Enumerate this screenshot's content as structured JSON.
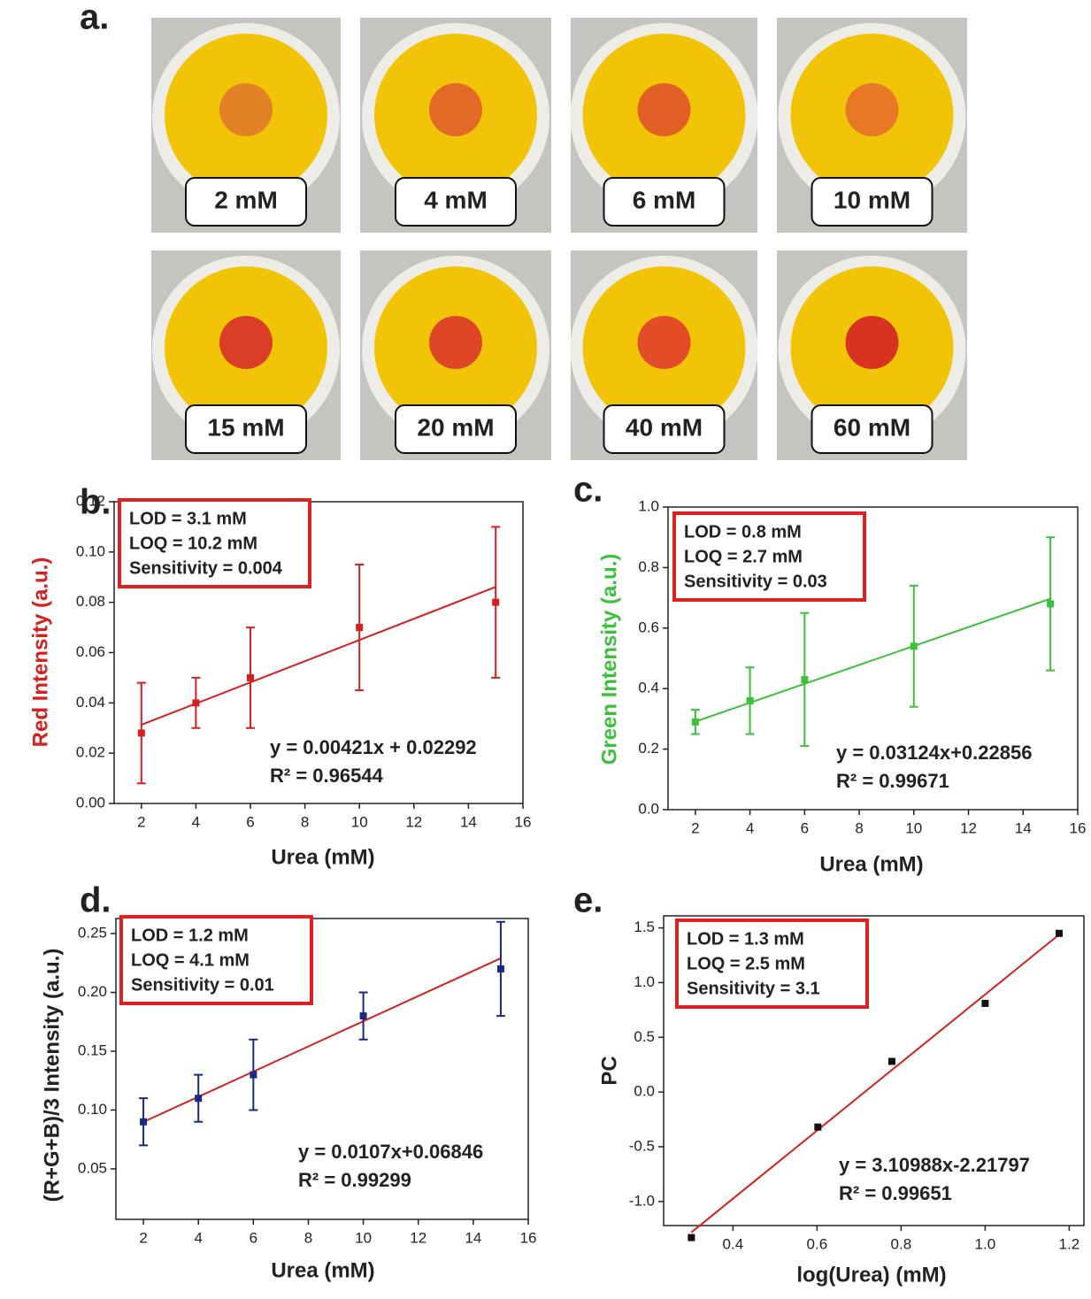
{
  "panel_a": {
    "letter": "a.",
    "tiles": [
      {
        "label": "2 mM",
        "spot_color": "#e07a2a"
      },
      {
        "label": "4 mM",
        "spot_color": "#e0602a"
      },
      {
        "label": "6 mM",
        "spot_color": "#e0552a"
      },
      {
        "label": "10 mM",
        "spot_color": "#e8702a"
      },
      {
        "label": "15 mM",
        "spot_color": "#d8302a"
      },
      {
        "label": "20 mM",
        "spot_color": "#dc3a2a"
      },
      {
        "label": "40 mM",
        "spot_color": "#e0402c"
      },
      {
        "label": "60 mM",
        "spot_color": "#d42424"
      }
    ]
  },
  "chart_data": [
    {
      "type": "scatter",
      "letter": "b.",
      "x": [
        2,
        4,
        6,
        10,
        15
      ],
      "values": [
        0.028,
        0.04,
        0.05,
        0.07,
        0.08
      ],
      "errors": [
        0.02,
        0.01,
        0.02,
        0.025,
        0.03
      ],
      "color": "#d42020",
      "fit": {
        "x": [
          2,
          15
        ],
        "values": [
          0.0313,
          0.0861
        ],
        "color": "#d42020"
      },
      "xlim": [
        1,
        16
      ],
      "xticks": [
        2,
        4,
        6,
        8,
        10,
        12,
        14,
        16
      ],
      "ylim": [
        0,
        0.12
      ],
      "yticks": [
        {
          "value": 0,
          "label": "0.00"
        },
        0.02,
        0.04,
        0.06,
        0.08,
        {
          "value": 0.1,
          "label": "0.10"
        },
        0.12
      ],
      "xlabel": "Urea (mM)",
      "ylabel": "Red Intensity (a.u.)",
      "ylabel_color": "#d42020",
      "box_color": "#e02020",
      "stats": [
        "LOD = 3.1 mM",
        "LOQ = 10.2 mM",
        "Sensitivity = 0.004"
      ],
      "equation": [
        "y = 0.00421x + 0.02292",
        "R² = 0.96544"
      ]
    },
    {
      "type": "scatter",
      "letter": "c.",
      "x": [
        2,
        4,
        6,
        10,
        15
      ],
      "values": [
        0.29,
        0.36,
        0.43,
        0.54,
        0.68
      ],
      "errors": [
        0.04,
        0.11,
        0.22,
        0.2,
        0.22
      ],
      "color": "#3cc03c",
      "fit": {
        "x": [
          2,
          15
        ],
        "values": [
          0.291,
          0.697
        ],
        "color": "#3cc03c"
      },
      "xlim": [
        1,
        16
      ],
      "xticks": [
        2,
        4,
        6,
        8,
        10,
        12,
        14,
        16
      ],
      "ylim": [
        0,
        1
      ],
      "yticks": [
        {
          "value": 0,
          "label": "0.0"
        },
        0.2,
        0.4,
        0.6,
        0.8,
        {
          "value": 1,
          "label": "1.0"
        }
      ],
      "xlabel": "Urea (mM)",
      "ylabel": "Green Intensity (a.u.)",
      "ylabel_color": "#3cc03c",
      "box_color": "#e02020",
      "stats": [
        "LOD = 0.8 mM",
        "LOQ = 2.7 mM",
        "Sensitivity = 0.03"
      ],
      "equation": [
        "y = 0.03124x+0.22856",
        "R² = 0.99671"
      ]
    },
    {
      "type": "scatter",
      "letter": "d.",
      "x": [
        2,
        4,
        6,
        10,
        15
      ],
      "values": [
        0.09,
        0.11,
        0.13,
        0.18,
        0.22
      ],
      "errors": [
        0.02,
        0.02,
        0.03,
        0.02,
        0.04
      ],
      "color": "#1a2a80",
      "fit": {
        "x": [
          2,
          15
        ],
        "values": [
          0.0899,
          0.229
        ],
        "color": "#d42020"
      },
      "xlim": [
        1,
        16
      ],
      "xticks": [
        2,
        4,
        6,
        8,
        10,
        12,
        14,
        16
      ],
      "ylim": [
        0.0071,
        0.2628
      ],
      "yticks": [
        0.05,
        {
          "value": 0.1,
          "label": "0.10"
        },
        0.15,
        {
          "value": 0.2,
          "label": "0.20"
        },
        0.25
      ],
      "xlabel": "Urea (mM)",
      "ylabel": "(R+G+B)/3 Intensity (a.u.)",
      "ylabel_color": "#222222",
      "box_color": "#e02020",
      "stats": [
        "LOD = 1.2 mM",
        "LOQ = 4.1 mM",
        "Sensitivity = 0.01"
      ],
      "equation": [
        "y = 0.0107x+0.06846",
        "R² = 0.99299"
      ]
    },
    {
      "type": "scatter",
      "letter": "e.",
      "x": [
        0.301,
        0.602,
        0.778,
        1.0,
        1.176
      ],
      "values": [
        -1.33,
        -0.32,
        0.28,
        0.81,
        1.45
      ],
      "color": "#111111",
      "fit": {
        "x": [
          0.301,
          1.176
        ],
        "values": [
          -1.282,
          1.439
        ],
        "color": "#d42020"
      },
      "xlim": [
        0.235,
        1.235
      ],
      "xticks": [
        0.4,
        0.6,
        0.8,
        {
          "value": 1,
          "label": "1.0"
        },
        1.2
      ],
      "ylim": [
        -1.22,
        1.61
      ],
      "yticks": [
        {
          "value": -1,
          "label": "-1.0"
        },
        -0.5,
        {
          "value": 0,
          "label": "0.0"
        },
        0.5,
        {
          "value": 1,
          "label": "1.0"
        },
        1.5
      ],
      "xlabel": "log(Urea) (mM)",
      "ylabel": "PC",
      "ylabel_color": "#222222",
      "box_color": "#e02020",
      "stats": [
        "LOD = 1.3 mM",
        "LOQ = 2.5 mM",
        "Sensitivity = 3.1"
      ],
      "equation": [
        "y = 3.10988x-2.21797",
        "R² = 0.99651"
      ]
    }
  ]
}
